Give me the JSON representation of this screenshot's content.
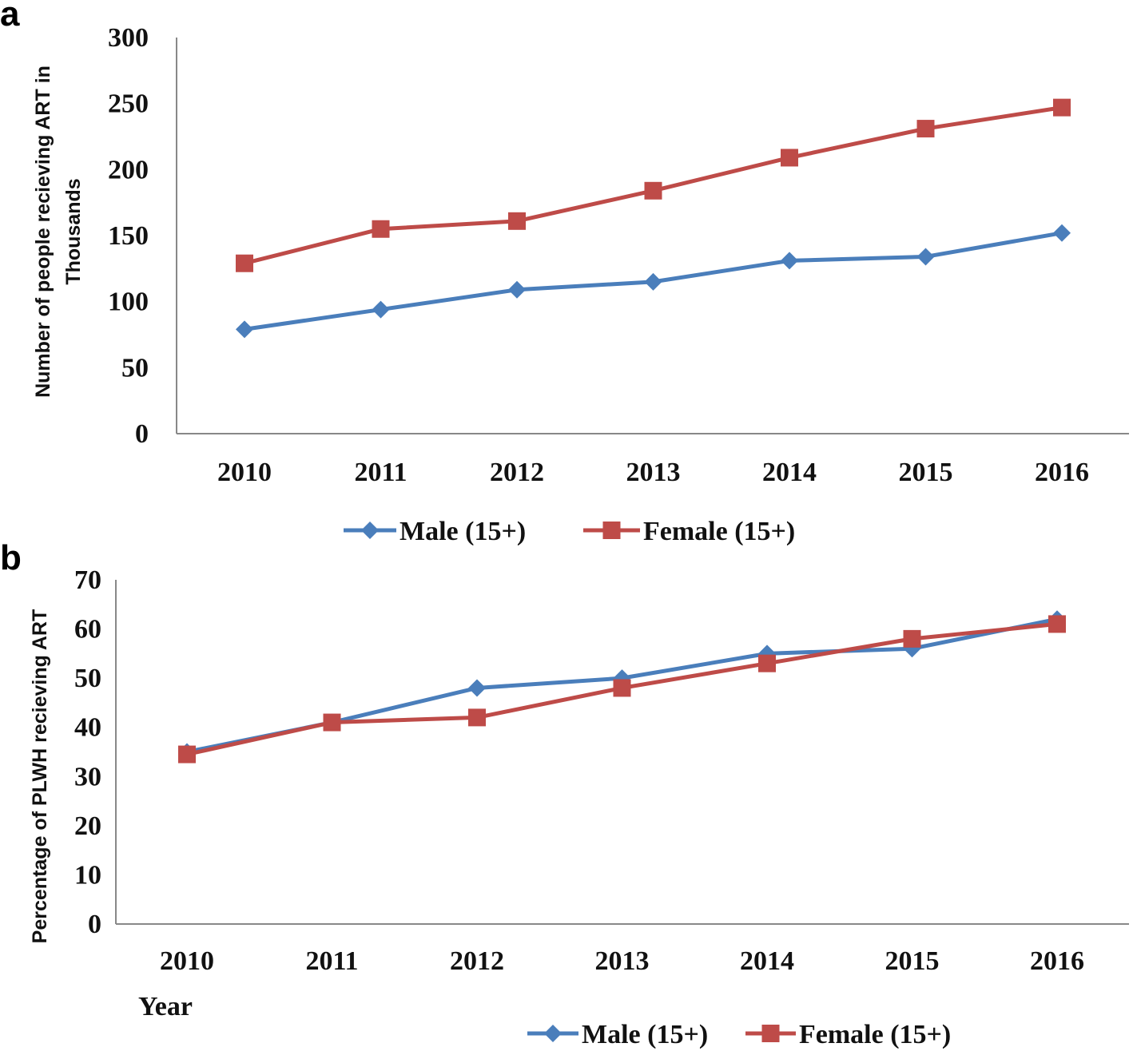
{
  "chart_data": [
    {
      "panel": "a",
      "type": "line",
      "ylabel": "Number of people recieving ART in Thousands",
      "ylabel_lines": [
        "Number of people recieving ART in",
        "Thousands"
      ],
      "xlabel": "",
      "categories": [
        "2010",
        "2011",
        "2012",
        "2013",
        "2014",
        "2015",
        "2016"
      ],
      "ylim": [
        0,
        300
      ],
      "yticks": [
        0,
        50,
        100,
        150,
        200,
        250,
        300
      ],
      "series": [
        {
          "name": "Male (15+)",
          "marker": "diamond",
          "color": "#4a7ebb",
          "values": [
            79,
            94,
            109,
            115,
            131,
            134,
            152
          ]
        },
        {
          "name": "Female (15+)",
          "marker": "square",
          "color": "#be4b48",
          "values": [
            129,
            155,
            161,
            184,
            209,
            231,
            247
          ]
        }
      ]
    },
    {
      "panel": "b",
      "type": "line",
      "ylabel": "Percentage of PLWH recieving ART",
      "xlabel": "Year",
      "categories": [
        "2010",
        "2011",
        "2012",
        "2013",
        "2014",
        "2015",
        "2016"
      ],
      "ylim": [
        0,
        70
      ],
      "yticks": [
        0,
        10,
        20,
        30,
        40,
        50,
        60,
        70
      ],
      "series": [
        {
          "name": "Male (15+)",
          "marker": "diamond",
          "color": "#4a7ebb",
          "values": [
            35,
            41,
            48,
            50,
            55,
            56,
            62
          ]
        },
        {
          "name": "Female (15+)",
          "marker": "square",
          "color": "#be4b48",
          "values": [
            34.5,
            41,
            42,
            48,
            53,
            58,
            61
          ]
        }
      ]
    }
  ]
}
